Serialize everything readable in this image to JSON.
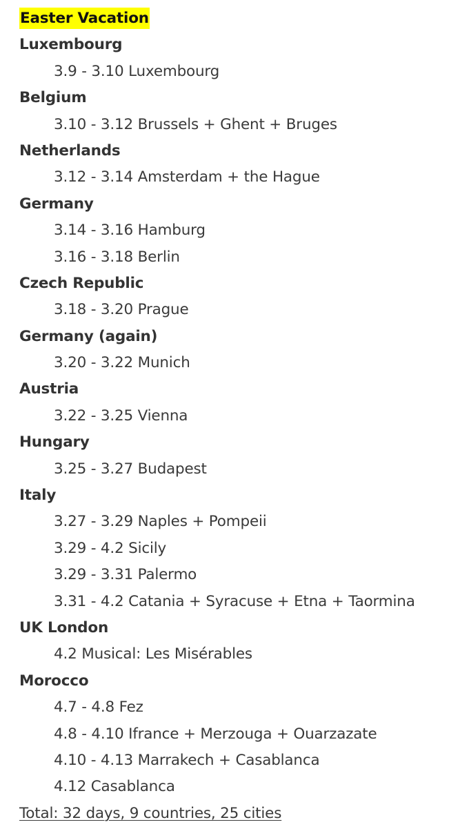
{
  "title": "Easter Vacation",
  "highlight_color": "#ffff00",
  "groups": [
    {
      "country": "Luxembourg",
      "entries": [
        "3.9 - 3.10 Luxembourg"
      ]
    },
    {
      "country": "Belgium",
      "entries": [
        "3.10 - 3.12 Brussels + Ghent + Bruges"
      ]
    },
    {
      "country": "Netherlands",
      "entries": [
        "3.12 - 3.14 Amsterdam + the Hague"
      ]
    },
    {
      "country": "Germany",
      "entries": [
        "3.14 - 3.16 Hamburg",
        "3.16 - 3.18 Berlin"
      ]
    },
    {
      "country": "Czech Republic",
      "entries": [
        "3.18 - 3.20 Prague"
      ]
    },
    {
      "country": "Germany (again)",
      "entries": [
        "3.20 - 3.22 Munich"
      ]
    },
    {
      "country": "Austria",
      "entries": [
        "3.22 - 3.25 Vienna"
      ]
    },
    {
      "country": "Hungary",
      "entries": [
        "3.25 - 3.27 Budapest"
      ]
    },
    {
      "country": "Italy",
      "entries": [
        "3.27 - 3.29 Naples + Pompeii",
        "3.29 - 4.2 Sicily",
        "3.29 - 3.31 Palermo",
        "3.31 - 4.2 Catania + Syracuse + Etna + Taormina"
      ]
    },
    {
      "country": "UK London",
      "entries": [
        "4.2 Musical: Les Misérables"
      ]
    },
    {
      "country": "Morocco",
      "entries": [
        "4.7 - 4.8 Fez",
        "4.8 - 4.10 Ifrance + Merzouga + Ouarzazate",
        "4.10 - 4.13 Marrakech + Casablanca",
        "4.12 Casablanca"
      ]
    }
  ],
  "total": "Total: 32 days, 9 countries, 25 cities"
}
